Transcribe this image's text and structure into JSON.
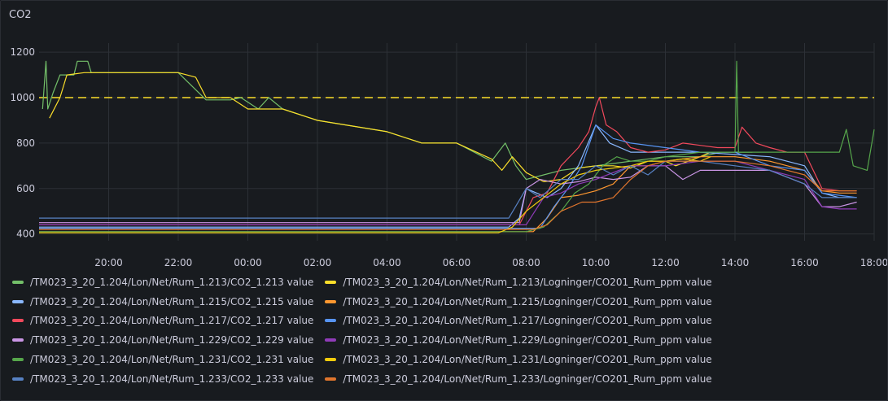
{
  "panel": {
    "title": "CO2"
  },
  "chart_data": {
    "type": "line",
    "title": "CO2",
    "xlabel": "",
    "ylabel": "",
    "ylim": [
      370,
      1240
    ],
    "yticks": [
      400,
      600,
      800,
      1000,
      1200
    ],
    "x_range_hours": [
      18.0,
      42.0
    ],
    "x_ticks": [
      {
        "h": 20,
        "label": "20:00"
      },
      {
        "h": 22,
        "label": "22:00"
      },
      {
        "h": 24,
        "label": "00:00"
      },
      {
        "h": 26,
        "label": "02:00"
      },
      {
        "h": 28,
        "label": "04:00"
      },
      {
        "h": 30,
        "label": "06:00"
      },
      {
        "h": 32,
        "label": "08:00"
      },
      {
        "h": 34,
        "label": "10:00"
      },
      {
        "h": 36,
        "label": "12:00"
      },
      {
        "h": 38,
        "label": "14:00"
      },
      {
        "h": 40,
        "label": "16:00"
      },
      {
        "h": 42,
        "label": "18:00"
      }
    ],
    "threshold": {
      "value": 1000,
      "color": "#fade2a",
      "style": "dashed"
    },
    "grid": true,
    "legend_position": "bottom",
    "series": [
      {
        "name": "/TM023_3_20_1.204/Lon/Net/Rum_1.213/CO2_1.213 value",
        "color": "#73bf69",
        "points": [
          [
            18.1,
            950
          ],
          [
            18.2,
            1160
          ],
          [
            18.25,
            950
          ],
          [
            18.4,
            1020
          ],
          [
            18.6,
            1100
          ],
          [
            19.0,
            1100
          ],
          [
            19.1,
            1160
          ],
          [
            19.4,
            1160
          ],
          [
            19.5,
            1110
          ],
          [
            22.0,
            1110
          ],
          [
            22.4,
            1050
          ],
          [
            22.8,
            990
          ],
          [
            23.5,
            990
          ],
          [
            23.8,
            1000
          ],
          [
            24.3,
            950
          ],
          [
            24.6,
            1000
          ],
          [
            25.0,
            950
          ],
          [
            26.0,
            900
          ],
          [
            28.0,
            850
          ],
          [
            29.0,
            800
          ],
          [
            30.0,
            800
          ],
          [
            31.0,
            720
          ],
          [
            31.4,
            800
          ],
          [
            31.7,
            700
          ],
          [
            32.0,
            640
          ],
          [
            32.5,
            660
          ],
          [
            33.0,
            680
          ],
          [
            34.0,
            700
          ],
          [
            35.0,
            720
          ],
          [
            36.0,
            740
          ],
          [
            37.0,
            740
          ],
          [
            37.6,
            760
          ],
          [
            38.0,
            760
          ],
          [
            38.5,
            760
          ]
        ]
      },
      {
        "name": "/TM023_3_20_1.204/Lon/Net/Rum_1.213/Logninger/CO201_Rum_ppm value",
        "color": "#fade2a",
        "points": [
          [
            18.3,
            910
          ],
          [
            18.6,
            1000
          ],
          [
            18.8,
            1100
          ],
          [
            19.3,
            1110
          ],
          [
            22.0,
            1110
          ],
          [
            22.5,
            1090
          ],
          [
            22.8,
            1000
          ],
          [
            23.5,
            1000
          ],
          [
            24.0,
            950
          ],
          [
            25.0,
            950
          ],
          [
            26.0,
            900
          ],
          [
            28.0,
            850
          ],
          [
            29.0,
            800
          ],
          [
            30.0,
            800
          ],
          [
            31.0,
            730
          ],
          [
            31.3,
            680
          ],
          [
            31.6,
            740
          ],
          [
            32.0,
            670
          ],
          [
            32.5,
            630
          ],
          [
            33.0,
            640
          ],
          [
            33.5,
            690
          ],
          [
            34.0,
            700
          ],
          [
            34.5,
            700
          ],
          [
            35.0,
            690
          ],
          [
            35.5,
            720
          ],
          [
            36.0,
            720
          ],
          [
            36.3,
            700
          ],
          [
            37.0,
            740
          ],
          [
            37.3,
            760
          ]
        ]
      },
      {
        "name": "/TM023_3_20_1.204/Lon/Net/Rum_1.215/CO2_1.215 value",
        "color": "#8ab8ff",
        "points": [
          [
            18.0,
            430
          ],
          [
            31.5,
            430
          ],
          [
            31.8,
            470
          ],
          [
            32.0,
            600
          ],
          [
            32.6,
            560
          ],
          [
            33.0,
            600
          ],
          [
            33.5,
            700
          ],
          [
            34.0,
            880
          ],
          [
            34.4,
            800
          ],
          [
            35.0,
            760
          ],
          [
            36.0,
            760
          ],
          [
            36.5,
            760
          ],
          [
            37.0,
            760
          ],
          [
            38.0,
            750
          ],
          [
            39.0,
            740
          ],
          [
            40.0,
            700
          ],
          [
            40.5,
            580
          ],
          [
            41.0,
            560
          ],
          [
            41.5,
            560
          ]
        ]
      },
      {
        "name": "/TM023_3_20_1.204/Lon/Net/Rum_1.215/Logninger/CO201_Rum_ppm value",
        "color": "#ff9830",
        "points": [
          [
            18.0,
            410
          ],
          [
            32.2,
            410
          ],
          [
            32.6,
            470
          ],
          [
            33.0,
            560
          ],
          [
            33.5,
            570
          ],
          [
            34.0,
            590
          ],
          [
            34.5,
            620
          ],
          [
            35.0,
            700
          ],
          [
            35.5,
            700
          ],
          [
            36.0,
            720
          ],
          [
            37.0,
            740
          ],
          [
            38.0,
            740
          ],
          [
            39.0,
            720
          ],
          [
            40.0,
            680
          ],
          [
            40.5,
            590
          ],
          [
            41.0,
            580
          ],
          [
            41.5,
            580
          ]
        ]
      },
      {
        "name": "/TM023_3_20_1.204/Lon/Net/Rum_1.217/CO2_1.217 value",
        "color": "#f2495c",
        "points": [
          [
            18.0,
            440
          ],
          [
            31.8,
            440
          ],
          [
            32.2,
            560
          ],
          [
            32.6,
            580
          ],
          [
            33.0,
            700
          ],
          [
            33.5,
            780
          ],
          [
            33.8,
            850
          ],
          [
            34.0,
            960
          ],
          [
            34.1,
            1000
          ],
          [
            34.3,
            880
          ],
          [
            34.6,
            850
          ],
          [
            35.0,
            780
          ],
          [
            35.5,
            760
          ],
          [
            36.0,
            770
          ],
          [
            36.5,
            800
          ],
          [
            37.0,
            790
          ],
          [
            37.5,
            780
          ],
          [
            38.0,
            780
          ],
          [
            38.2,
            870
          ],
          [
            38.6,
            800
          ],
          [
            39.0,
            780
          ],
          [
            39.5,
            760
          ],
          [
            40.0,
            760
          ],
          [
            40.5,
            600
          ],
          [
            41.0,
            590
          ],
          [
            41.5,
            590
          ]
        ]
      },
      {
        "name": "/TM023_3_20_1.204/Lon/Net/Rum_1.217/Logninger/CO201_Rum_ppm value",
        "color": "#5794f2",
        "points": [
          [
            18.0,
            425
          ],
          [
            32.4,
            425
          ],
          [
            32.8,
            520
          ],
          [
            33.2,
            600
          ],
          [
            33.6,
            700
          ],
          [
            34.0,
            880
          ],
          [
            34.5,
            820
          ],
          [
            35.0,
            800
          ],
          [
            36.0,
            780
          ],
          [
            37.0,
            760
          ],
          [
            38.0,
            760
          ],
          [
            39.0,
            700
          ],
          [
            40.0,
            680
          ],
          [
            40.5,
            580
          ],
          [
            41.0,
            570
          ],
          [
            41.5,
            560
          ]
        ]
      },
      {
        "name": "/TM023_3_20_1.204/Lon/Net/Rum_1.229/CO2_1.229 value",
        "color": "#ca95e5",
        "points": [
          [
            18.0,
            450
          ],
          [
            31.8,
            450
          ],
          [
            32.0,
            600
          ],
          [
            32.4,
            640
          ],
          [
            33.0,
            620
          ],
          [
            33.5,
            630
          ],
          [
            34.0,
            650
          ],
          [
            34.5,
            640
          ],
          [
            35.0,
            650
          ],
          [
            35.5,
            700
          ],
          [
            36.0,
            700
          ],
          [
            36.5,
            640
          ],
          [
            37.0,
            680
          ],
          [
            38.0,
            680
          ],
          [
            39.0,
            680
          ],
          [
            40.0,
            620
          ],
          [
            40.5,
            520
          ],
          [
            41.0,
            520
          ],
          [
            41.5,
            540
          ]
        ]
      },
      {
        "name": "/TM023_3_20_1.204/Lon/Net/Rum_1.229/Logninger/CO201_Rum_ppm value",
        "color": "#8f3bb8",
        "points": [
          [
            18.0,
            440
          ],
          [
            32.0,
            440
          ],
          [
            32.5,
            560
          ],
          [
            33.0,
            580
          ],
          [
            33.5,
            620
          ],
          [
            34.0,
            640
          ],
          [
            35.0,
            700
          ],
          [
            36.0,
            700
          ],
          [
            37.0,
            720
          ],
          [
            38.0,
            720
          ],
          [
            39.0,
            680
          ],
          [
            40.0,
            640
          ],
          [
            40.5,
            520
          ],
          [
            41.0,
            510
          ],
          [
            41.5,
            510
          ]
        ]
      },
      {
        "name": "/TM023_3_20_1.204/Lon/Net/Rum_1.231/CO2_1.231 value",
        "color": "#56a64b",
        "points": [
          [
            18.0,
            410
          ],
          [
            32.0,
            410
          ],
          [
            32.5,
            430
          ],
          [
            33.0,
            500
          ],
          [
            33.4,
            580
          ],
          [
            33.8,
            620
          ],
          [
            34.2,
            700
          ],
          [
            34.6,
            740
          ],
          [
            35.0,
            720
          ],
          [
            35.5,
            720
          ],
          [
            36.0,
            740
          ],
          [
            37.0,
            760
          ],
          [
            37.5,
            760
          ],
          [
            38.0,
            760
          ],
          [
            38.05,
            1160
          ],
          [
            38.1,
            760
          ],
          [
            38.5,
            760
          ],
          [
            39.0,
            760
          ],
          [
            40.0,
            760
          ],
          [
            40.5,
            760
          ],
          [
            41.0,
            760
          ],
          [
            41.2,
            860
          ],
          [
            41.4,
            700
          ],
          [
            41.8,
            680
          ],
          [
            42.0,
            860
          ]
        ]
      },
      {
        "name": "/TM023_3_20_1.204/Lon/Net/Rum_1.231/Logninger/CO201_Rum_ppm value",
        "color": "#f2cc0c",
        "points": [
          [
            18.0,
            405
          ],
          [
            31.2,
            405
          ],
          [
            31.6,
            430
          ],
          [
            32.0,
            500
          ],
          [
            32.5,
            560
          ],
          [
            33.0,
            620
          ],
          [
            33.5,
            660
          ],
          [
            34.0,
            680
          ],
          [
            34.5,
            690
          ],
          [
            35.0,
            700
          ],
          [
            35.5,
            720
          ],
          [
            36.0,
            720
          ],
          [
            36.5,
            730
          ],
          [
            37.0,
            720
          ],
          [
            37.3,
            740
          ]
        ]
      },
      {
        "name": "/TM023_3_20_1.204/Lon/Net/Rum_1.233/CO2_1.233 value",
        "color": "#5781c3",
        "points": [
          [
            18.0,
            470
          ],
          [
            31.5,
            470
          ],
          [
            32.0,
            600
          ],
          [
            32.4,
            560
          ],
          [
            33.0,
            640
          ],
          [
            33.5,
            640
          ],
          [
            34.0,
            700
          ],
          [
            34.5,
            660
          ],
          [
            35.0,
            700
          ],
          [
            35.5,
            660
          ],
          [
            36.0,
            720
          ],
          [
            37.0,
            720
          ],
          [
            38.0,
            700
          ],
          [
            39.0,
            680
          ],
          [
            40.0,
            620
          ],
          [
            40.5,
            560
          ],
          [
            41.0,
            560
          ],
          [
            41.5,
            560
          ]
        ]
      },
      {
        "name": "/TM023_3_20_1.204/Lon/Net/Rum_1.233/Logninger/CO201_Rum_ppm value",
        "color": "#e0752d",
        "points": [
          [
            18.0,
            420
          ],
          [
            32.2,
            420
          ],
          [
            32.6,
            440
          ],
          [
            33.0,
            500
          ],
          [
            33.6,
            540
          ],
          [
            34.0,
            540
          ],
          [
            34.5,
            560
          ],
          [
            35.0,
            640
          ],
          [
            35.5,
            700
          ],
          [
            36.0,
            720
          ],
          [
            37.0,
            720
          ],
          [
            38.0,
            720
          ],
          [
            39.0,
            700
          ],
          [
            40.0,
            660
          ],
          [
            40.5,
            590
          ],
          [
            41.0,
            590
          ],
          [
            41.5,
            590
          ]
        ]
      }
    ]
  }
}
